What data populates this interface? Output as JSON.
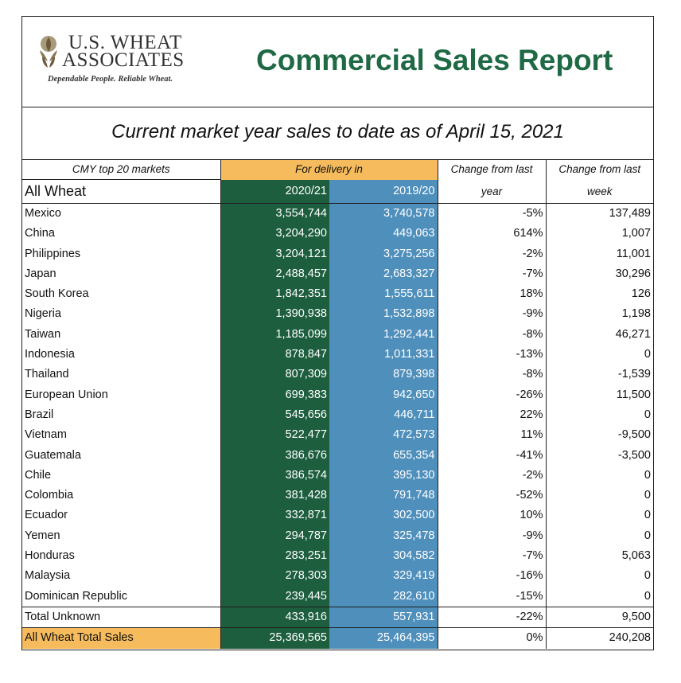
{
  "header": {
    "logo_line1": "U.S. WHEAT",
    "logo_line2": "ASSOCIATES",
    "logo_tagline": "Dependable People. Reliable Wheat.",
    "title": "Commercial Sales Report"
  },
  "subtitle": "Current market year sales to date as of April 15, 2021",
  "table": {
    "col1_header": "CMY top 20 markets",
    "delivery_header": "For delivery in",
    "change_year_header_1": "Change from last",
    "change_year_header_2": "year",
    "change_week_header_1": "Change from last",
    "change_week_header_2": "week",
    "section_label": "All Wheat",
    "year_current": "2020/21",
    "year_previous": "2019/20",
    "rows": [
      {
        "market": "Mexico",
        "cur": "3,554,744",
        "prev": "3,740,578",
        "chg_year": "-5%",
        "chg_week": "137,489"
      },
      {
        "market": "China",
        "cur": "3,204,290",
        "prev": "449,063",
        "chg_year": "614%",
        "chg_week": "1,007"
      },
      {
        "market": "Philippines",
        "cur": "3,204,121",
        "prev": "3,275,256",
        "chg_year": "-2%",
        "chg_week": "11,001"
      },
      {
        "market": "Japan",
        "cur": "2,488,457",
        "prev": "2,683,327",
        "chg_year": "-7%",
        "chg_week": "30,296"
      },
      {
        "market": "South Korea",
        "cur": "1,842,351",
        "prev": "1,555,611",
        "chg_year": "18%",
        "chg_week": "126"
      },
      {
        "market": "Nigeria",
        "cur": "1,390,938",
        "prev": "1,532,898",
        "chg_year": "-9%",
        "chg_week": "1,198"
      },
      {
        "market": "Taiwan",
        "cur": "1,185,099",
        "prev": "1,292,441",
        "chg_year": "-8%",
        "chg_week": "46,271"
      },
      {
        "market": "Indonesia",
        "cur": "878,847",
        "prev": "1,011,331",
        "chg_year": "-13%",
        "chg_week": "0"
      },
      {
        "market": "Thailand",
        "cur": "807,309",
        "prev": "879,398",
        "chg_year": "-8%",
        "chg_week": "-1,539"
      },
      {
        "market": "European Union",
        "cur": "699,383",
        "prev": "942,650",
        "chg_year": "-26%",
        "chg_week": "11,500"
      },
      {
        "market": "Brazil",
        "cur": "545,656",
        "prev": "446,711",
        "chg_year": "22%",
        "chg_week": "0"
      },
      {
        "market": "Vietnam",
        "cur": "522,477",
        "prev": "472,573",
        "chg_year": "11%",
        "chg_week": "-9,500"
      },
      {
        "market": "Guatemala",
        "cur": "386,676",
        "prev": "655,354",
        "chg_year": "-41%",
        "chg_week": "-3,500"
      },
      {
        "market": "Chile",
        "cur": "386,574",
        "prev": "395,130",
        "chg_year": "-2%",
        "chg_week": "0"
      },
      {
        "market": "Colombia",
        "cur": "381,428",
        "prev": "791,748",
        "chg_year": "-52%",
        "chg_week": "0"
      },
      {
        "market": "Ecuador",
        "cur": "332,871",
        "prev": "302,500",
        "chg_year": "10%",
        "chg_week": "0"
      },
      {
        "market": "Yemen",
        "cur": "294,787",
        "prev": "325,478",
        "chg_year": "-9%",
        "chg_week": "0"
      },
      {
        "market": "Honduras",
        "cur": "283,251",
        "prev": "304,582",
        "chg_year": "-7%",
        "chg_week": "5,063"
      },
      {
        "market": "Malaysia",
        "cur": "278,303",
        "prev": "329,419",
        "chg_year": "-16%",
        "chg_week": "0"
      },
      {
        "market": "Dominican Republic",
        "cur": "239,445",
        "prev": "282,610",
        "chg_year": "-15%",
        "chg_week": "0"
      }
    ],
    "total_unknown": {
      "market": "Total Unknown",
      "cur": "433,916",
      "prev": "557,931",
      "chg_year": "-22%",
      "chg_week": "9,500"
    },
    "grand_total": {
      "market": "All Wheat Total Sales",
      "cur": "25,369,565",
      "prev": "25,464,395",
      "chg_year": "0%",
      "chg_week": "240,208"
    }
  },
  "colors": {
    "title_green": "#1f6a45",
    "column_green": "#1d5e3f",
    "column_blue": "#4f8fbc",
    "highlight_orange": "#f5bb5c"
  }
}
